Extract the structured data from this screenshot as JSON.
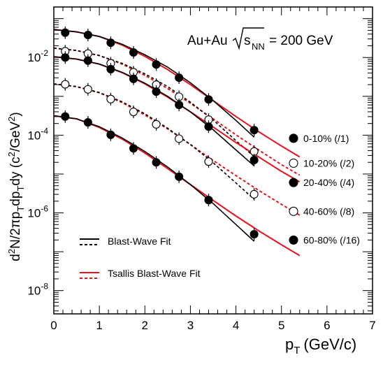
{
  "chart_data": {
    "type": "scatter",
    "title": "",
    "collision_label": "Au+Au",
    "energy_label": "s",
    "energy_sub": "NN",
    "energy_value": "= 200 GeV",
    "xlabel": "p",
    "xlabel_sub": "T",
    "xlabel_units": "(GeV/c)",
    "ylabel_parts": [
      "d",
      "2",
      "N/2πp",
      "T",
      "dp",
      "T",
      "dy (c",
      "2",
      "/GeV",
      "2",
      ")"
    ],
    "xlim": [
      0,
      7
    ],
    "ylim_log10": [
      -8.6,
      -0.7
    ],
    "x_ticks": [
      0,
      1,
      2,
      3,
      4,
      5,
      6,
      7
    ],
    "y_ticks": [
      {
        "base": "10",
        "exp": "-2",
        "log": -2
      },
      {
        "base": "10",
        "exp": "-4",
        "log": -4
      },
      {
        "base": "10",
        "exp": "-6",
        "log": -6
      },
      {
        "base": "10",
        "exp": "-8",
        "log": -8
      }
    ],
    "pt": [
      0.25,
      0.75,
      1.25,
      1.75,
      2.25,
      2.75,
      3.4,
      4.4
    ],
    "series": [
      {
        "name": "0-10% (/1)",
        "marker": "filled",
        "style": "solid",
        "log10_values": [
          -1.36,
          -1.42,
          -1.62,
          -1.87,
          -2.18,
          -2.52,
          -3.08,
          -3.87
        ],
        "bw_x": [
          0.0,
          0.5,
          1.0,
          1.5,
          2.0,
          2.5,
          3.0,
          3.5,
          4.0,
          4.4
        ],
        "bw_log10": [
          -1.28,
          -1.34,
          -1.46,
          -1.66,
          -1.93,
          -2.25,
          -2.65,
          -3.11,
          -3.62,
          -4.05
        ],
        "tsallis_x": [
          0.0,
          0.5,
          1.0,
          1.5,
          2.0,
          2.5,
          3.0,
          3.5,
          4.0,
          4.5,
          5.0,
          5.4
        ],
        "tsallis_log10": [
          -1.28,
          -1.34,
          -1.46,
          -1.68,
          -1.97,
          -2.31,
          -2.7,
          -3.11,
          -3.52,
          -3.91,
          -4.28,
          -4.56
        ]
      },
      {
        "name": "10-20% (/2)",
        "marker": "open",
        "style": "dashed",
        "log10_values": [
          -1.84,
          -1.9,
          -2.15,
          -2.38,
          -2.7,
          -3.01,
          -3.6,
          -4.42
        ],
        "bw_x": [
          0.0,
          0.5,
          1.0,
          1.5,
          2.0,
          2.5,
          3.0,
          3.5,
          4.0,
          4.4
        ],
        "bw_log10": [
          -1.76,
          -1.82,
          -1.95,
          -2.15,
          -2.42,
          -2.75,
          -3.15,
          -3.61,
          -4.14,
          -4.55
        ],
        "tsallis_x": [
          0.0,
          0.5,
          1.0,
          1.5,
          2.0,
          2.5,
          3.0,
          3.5,
          4.0,
          4.5,
          5.0,
          5.4
        ],
        "tsallis_log10": [
          -1.76,
          -1.82,
          -1.95,
          -2.17,
          -2.46,
          -2.8,
          -3.18,
          -3.58,
          -3.99,
          -4.38,
          -4.76,
          -5.03
        ]
      },
      {
        "name": "20-40% (/4)",
        "marker": "filled",
        "style": "solid",
        "log10_values": [
          -2.0,
          -2.08,
          -2.3,
          -2.55,
          -2.88,
          -3.22,
          -3.78,
          -4.64
        ],
        "bw_x": [
          0.0,
          0.5,
          1.0,
          1.5,
          2.0,
          2.5,
          3.0,
          3.5,
          4.0,
          4.4
        ],
        "bw_log10": [
          -1.98,
          -2.04,
          -2.17,
          -2.38,
          -2.66,
          -3.0,
          -3.4,
          -3.86,
          -4.38,
          -4.79
        ],
        "tsallis_x": [
          0.0,
          0.5,
          1.0,
          1.5,
          2.0,
          2.5,
          3.0,
          3.5,
          4.0,
          4.5,
          5.0,
          5.4
        ],
        "tsallis_log10": [
          -1.98,
          -2.04,
          -2.17,
          -2.39,
          -2.68,
          -3.02,
          -3.4,
          -3.79,
          -4.19,
          -4.56,
          -4.93,
          -5.2
        ]
      },
      {
        "name": "40-60% (/8)",
        "marker": "open",
        "style": "dashed",
        "log10_values": [
          -2.69,
          -2.82,
          -3.07,
          -3.4,
          -3.72,
          -4.09,
          -4.68,
          -5.52
        ],
        "bw_x": [
          0.0,
          0.5,
          1.0,
          1.5,
          2.0,
          2.5,
          3.0,
          3.5,
          4.0,
          4.4
        ],
        "bw_log10": [
          -2.68,
          -2.75,
          -2.9,
          -3.14,
          -3.45,
          -3.82,
          -4.24,
          -4.71,
          -5.23,
          -5.65
        ],
        "tsallis_x": [
          0.0,
          0.5,
          1.0,
          1.5,
          2.0,
          2.5,
          3.0,
          3.5,
          4.0,
          4.5,
          5.0,
          5.4
        ],
        "tsallis_log10": [
          -2.68,
          -2.75,
          -2.91,
          -3.16,
          -3.48,
          -3.84,
          -4.24,
          -4.65,
          -5.04,
          -5.42,
          -5.78,
          -6.06
        ]
      },
      {
        "name": "60-80% (/16)",
        "marker": "filled",
        "style": "solid",
        "log10_values": [
          -3.52,
          -3.67,
          -3.99,
          -4.34,
          -4.7,
          -5.07,
          -5.67,
          -6.55
        ],
        "bw_x": [
          0.0,
          0.5,
          1.0,
          1.5,
          2.0,
          2.5,
          3.0,
          3.5,
          4.0,
          4.4
        ],
        "bw_log10": [
          -3.5,
          -3.58,
          -3.78,
          -4.07,
          -4.42,
          -4.82,
          -5.27,
          -5.76,
          -6.3,
          -6.73
        ],
        "tsallis_x": [
          0.0,
          0.5,
          1.0,
          1.5,
          2.0,
          2.5,
          3.0,
          3.5,
          4.0,
          4.5,
          5.0,
          5.4
        ],
        "tsallis_log10": [
          -3.5,
          -3.58,
          -3.8,
          -4.1,
          -4.46,
          -4.86,
          -5.27,
          -5.68,
          -6.08,
          -6.46,
          -6.82,
          -7.1
        ]
      }
    ],
    "legend_fit": [
      {
        "label": "Blast-Wave Fit",
        "color": "#000000"
      },
      {
        "label": "Tsallis Blast-Wave Fit",
        "color": "#e8121d"
      }
    ],
    "colors": {
      "blast_wave": "#000000",
      "tsallis": "#e8121d",
      "marker": "#000000"
    }
  }
}
